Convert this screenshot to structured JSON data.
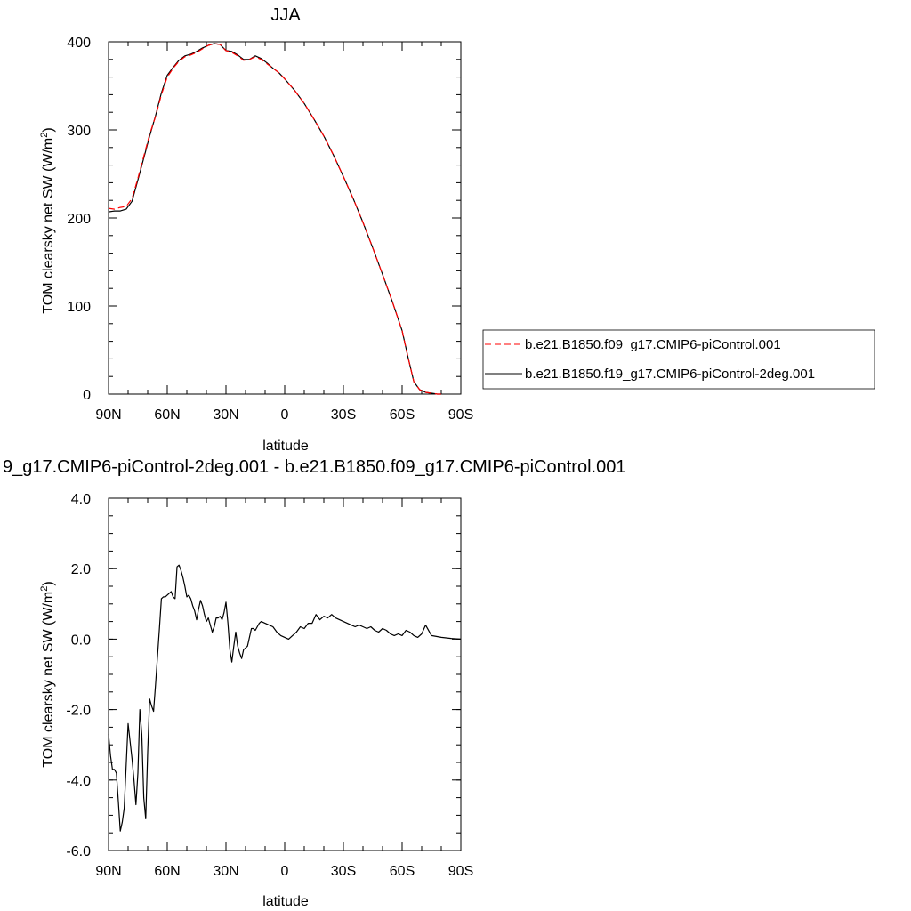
{
  "chart_data": [
    {
      "type": "line",
      "title": "JJA",
      "xlabel": "latitude",
      "ylabel": "TOM clearsky net SW (W/m²)",
      "xlim": [
        90,
        -90
      ],
      "ylim": [
        0,
        400
      ],
      "xticks": [
        {
          "value": 90,
          "label": "90N"
        },
        {
          "value": 60,
          "label": "60N"
        },
        {
          "value": 30,
          "label": "30N"
        },
        {
          "value": 0,
          "label": "0"
        },
        {
          "value": -30,
          "label": "30S"
        },
        {
          "value": -60,
          "label": "60S"
        },
        {
          "value": -90,
          "label": "90S"
        }
      ],
      "yticks": [
        {
          "value": 0,
          "label": "0"
        },
        {
          "value": 100,
          "label": "100"
        },
        {
          "value": 200,
          "label": "200"
        },
        {
          "value": 300,
          "label": "300"
        },
        {
          "value": 400,
          "label": "400"
        }
      ],
      "legend_position": "right",
      "series": [
        {
          "name": "b.e21.B1850.f09_g17.CMIP6-piControl.001",
          "color": "#ff0000",
          "style": "dashed",
          "x": [
            90,
            87,
            84,
            81,
            78,
            75,
            72,
            69,
            66,
            63,
            60,
            57,
            54,
            51,
            48,
            45,
            42,
            39,
            36,
            33,
            30,
            27,
            24,
            21,
            18,
            15,
            12,
            9,
            6,
            3,
            0,
            -5,
            -10,
            -15,
            -20,
            -25,
            -30,
            -35,
            -40,
            -45,
            -50,
            -55,
            -60,
            -63,
            -66,
            -69,
            -72,
            -75,
            -78,
            -80
          ],
          "y": [
            211,
            210,
            212,
            213,
            222,
            245,
            270,
            295,
            315,
            340,
            360,
            370,
            378,
            383,
            385,
            388,
            392,
            396,
            398,
            397,
            390,
            388,
            384,
            379,
            380,
            383,
            380,
            375,
            370,
            365,
            358,
            345,
            330,
            312,
            293,
            271,
            247,
            222,
            195,
            166,
            136,
            105,
            72,
            42,
            14,
            5,
            2,
            1,
            0,
            0
          ]
        },
        {
          "name": "b.e21.B1850.f19_g17.CMIP6-piControl-2deg.001",
          "color": "#000000",
          "style": "solid",
          "x": [
            90,
            87,
            84,
            81,
            78,
            75,
            72,
            69,
            66,
            63,
            60,
            57,
            54,
            51,
            48,
            45,
            42,
            39,
            36,
            33,
            30,
            27,
            24,
            21,
            18,
            15,
            12,
            9,
            6,
            3,
            0,
            -5,
            -10,
            -15,
            -20,
            -25,
            -30,
            -35,
            -40,
            -45,
            -50,
            -55,
            -60,
            -63,
            -66,
            -69,
            -72,
            -75,
            -78,
            -80
          ],
          "y": [
            207,
            208,
            208,
            210,
            219,
            243,
            268,
            293,
            316,
            342,
            362,
            371,
            379,
            384,
            386,
            389,
            393,
            396,
            398,
            397,
            390,
            389,
            385,
            380,
            380,
            384,
            381,
            376,
            370,
            365,
            358,
            345,
            330,
            312,
            293,
            271,
            247,
            222,
            195,
            166,
            136,
            105,
            72,
            42,
            14,
            5,
            2,
            1,
            0,
            0
          ]
        }
      ]
    },
    {
      "type": "line",
      "title": "9_g17.CMIP6-piControl-2deg.001 - b.e21.B1850.f09_g17.CMIP6-piControl.001",
      "xlabel": "latitude",
      "ylabel": "TOM clearsky net SW (W/m²)",
      "xlim": [
        90,
        -90
      ],
      "ylim": [
        -6,
        4
      ],
      "xticks": [
        {
          "value": 90,
          "label": "90N"
        },
        {
          "value": 60,
          "label": "60N"
        },
        {
          "value": 30,
          "label": "30N"
        },
        {
          "value": 0,
          "label": "0"
        },
        {
          "value": -30,
          "label": "30S"
        },
        {
          "value": -60,
          "label": "60S"
        },
        {
          "value": -90,
          "label": "90S"
        }
      ],
      "yticks": [
        {
          "value": -6,
          "label": "-6.0"
        },
        {
          "value": -4,
          "label": "-4.0"
        },
        {
          "value": -2,
          "label": "-2.0"
        },
        {
          "value": 0,
          "label": "0.0"
        },
        {
          "value": 2,
          "label": "2.0"
        },
        {
          "value": 4,
          "label": "4.0"
        }
      ],
      "series": [
        {
          "color": "#000000",
          "style": "solid",
          "x": [
            90,
            89,
            88,
            87,
            86,
            85,
            84,
            83,
            82,
            80,
            79,
            78,
            77,
            76,
            75,
            74,
            73,
            72,
            71,
            70,
            69,
            68,
            67,
            66,
            65,
            64,
            63,
            62,
            61,
            60,
            58,
            57,
            56,
            55,
            54,
            53,
            52,
            51,
            50,
            49,
            48,
            47,
            46,
            45,
            44,
            43,
            42,
            41,
            40,
            39,
            38,
            37,
            36,
            35,
            34,
            33,
            32,
            31,
            30,
            29,
            28,
            27,
            26,
            25,
            24,
            23,
            22,
            21,
            20,
            19,
            18,
            17,
            16,
            15,
            14,
            13,
            12,
            10,
            8,
            6,
            4,
            2,
            0,
            -2,
            -4,
            -6,
            -8,
            -10,
            -12,
            -14,
            -16,
            -18,
            -20,
            -22,
            -24,
            -26,
            -28,
            -30,
            -32,
            -34,
            -36,
            -38,
            -40,
            -42,
            -44,
            -46,
            -48,
            -50,
            -52,
            -54,
            -56,
            -58,
            -60,
            -62,
            -64,
            -66,
            -68,
            -70,
            -72,
            -75,
            -80,
            -85,
            -90
          ],
          "y": [
            -2.7,
            -3.3,
            -3.7,
            -3.7,
            -3.8,
            -4.6,
            -5.45,
            -5.2,
            -4.8,
            -2.4,
            -2.9,
            -3.4,
            -4.0,
            -4.7,
            -3.8,
            -2.0,
            -2.7,
            -4.5,
            -5.1,
            -3.2,
            -1.7,
            -1.9,
            -2.05,
            -1.3,
            -0.5,
            0.3,
            1.15,
            1.2,
            1.2,
            1.25,
            1.35,
            1.2,
            1.15,
            2.05,
            2.1,
            1.95,
            1.75,
            1.5,
            1.2,
            1.25,
            1.15,
            0.95,
            0.8,
            0.55,
            0.85,
            1.1,
            0.95,
            0.7,
            0.5,
            0.6,
            0.4,
            0.2,
            0.35,
            0.6,
            0.6,
            0.65,
            0.55,
            0.75,
            1.05,
            0.45,
            -0.3,
            -0.65,
            -0.2,
            0.2,
            -0.2,
            -0.4,
            -0.55,
            -0.3,
            -0.25,
            -0.2,
            0.05,
            0.3,
            0.3,
            0.25,
            0.35,
            0.45,
            0.5,
            0.45,
            0.4,
            0.35,
            0.2,
            0.1,
            0.05,
            0.0,
            0.1,
            0.2,
            0.35,
            0.3,
            0.45,
            0.45,
            0.7,
            0.55,
            0.65,
            0.6,
            0.7,
            0.6,
            0.55,
            0.5,
            0.45,
            0.4,
            0.35,
            0.4,
            0.35,
            0.3,
            0.35,
            0.25,
            0.2,
            0.3,
            0.25,
            0.15,
            0.1,
            0.15,
            0.1,
            0.25,
            0.2,
            0.1,
            0.05,
            0.15,
            0.4,
            0.1,
            0.05,
            0.02,
            0.0
          ]
        }
      ]
    }
  ]
}
